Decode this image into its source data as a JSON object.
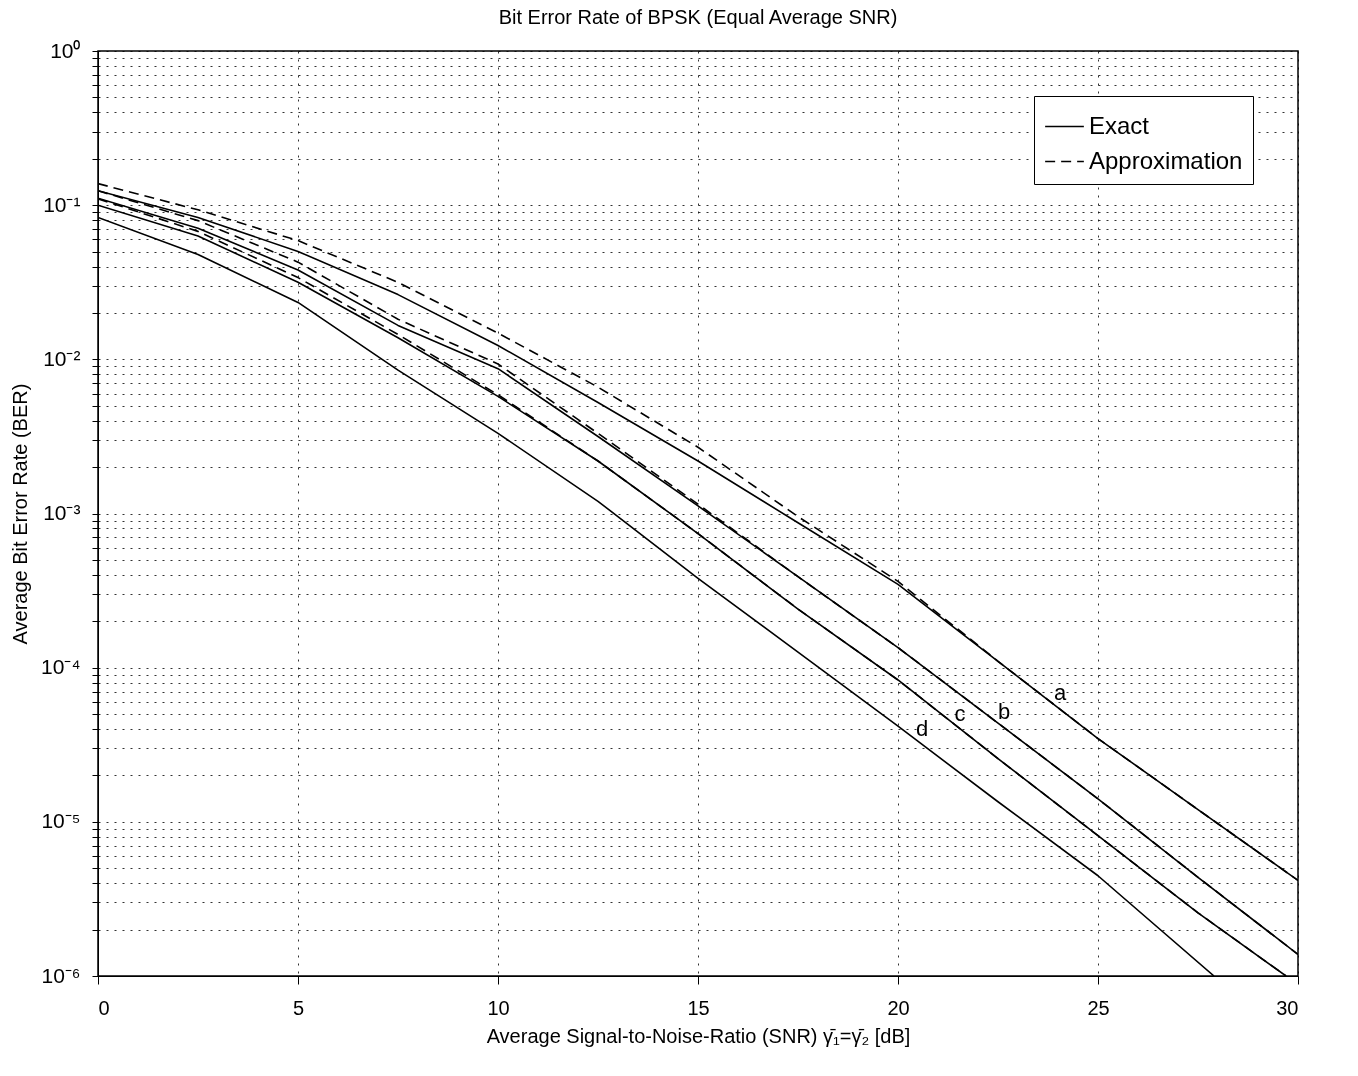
{
  "chart_data": {
    "type": "line",
    "title": "Bit Error Rate of BPSK (Equal Average SNR)",
    "xlabel": "Average Signal-to-Noise-Ratio (SNR) γ̄₁=γ̄₂ [dB]",
    "ylabel": "Average Bit Error Rate (BER)",
    "log": "y",
    "grid": true,
    "legend": "top right",
    "xlim": [
      0,
      30
    ],
    "xticks": [
      0,
      5,
      10,
      15,
      20,
      25,
      30
    ],
    "ylim": [
      1e-06,
      1
    ],
    "yticks": [
      {
        "value": 1e-06,
        "label": "10⁻⁶"
      },
      {
        "value": 2e-06,
        "label": null
      },
      {
        "value": 3e-06,
        "label": null
      },
      {
        "value": 4e-06,
        "label": null
      },
      {
        "value": 5e-06,
        "label": null
      },
      {
        "value": 6e-06,
        "label": null
      },
      {
        "value": 7e-06,
        "label": null
      },
      {
        "value": 8e-06,
        "label": null
      },
      {
        "value": 9e-06,
        "label": null
      },
      {
        "value": 1e-05,
        "label": "10⁻⁵"
      },
      {
        "value": 2e-05,
        "label": null
      },
      {
        "value": 3e-05,
        "label": null
      },
      {
        "value": 4e-05,
        "label": null
      },
      {
        "value": 5e-05,
        "label": null
      },
      {
        "value": 6e-05,
        "label": null
      },
      {
        "value": 7e-05,
        "label": null
      },
      {
        "value": 8e-05,
        "label": null
      },
      {
        "value": 9e-05,
        "label": null
      },
      {
        "value": 0.0001,
        "label": "10⁻⁴"
      },
      {
        "value": 0.0002,
        "label": null
      },
      {
        "value": 0.0003,
        "label": null
      },
      {
        "value": 0.0004,
        "label": null
      },
      {
        "value": 0.0005,
        "label": null
      },
      {
        "value": 0.0006,
        "label": null
      },
      {
        "value": 0.0007,
        "label": null
      },
      {
        "value": 0.0008,
        "label": null
      },
      {
        "value": 0.0009,
        "label": null
      },
      {
        "value": 0.001,
        "label": "10⁻³"
      },
      {
        "value": 0.002,
        "label": null
      },
      {
        "value": 0.003,
        "label": null
      },
      {
        "value": 0.004,
        "label": null
      },
      {
        "value": 0.005,
        "label": null
      },
      {
        "value": 0.006,
        "label": null
      },
      {
        "value": 0.007,
        "label": null
      },
      {
        "value": 0.008,
        "label": null
      },
      {
        "value": 0.009,
        "label": null
      },
      {
        "value": 0.01,
        "label": "10⁻²"
      },
      {
        "value": 0.02,
        "label": null
      },
      {
        "value": 0.03,
        "label": null
      },
      {
        "value": 0.04,
        "label": null
      },
      {
        "value": 0.05,
        "label": null
      },
      {
        "value": 0.06,
        "label": null
      },
      {
        "value": 0.07,
        "label": null
      },
      {
        "value": 0.08,
        "label": null
      },
      {
        "value": 0.09,
        "label": null
      },
      {
        "value": 0.1,
        "label": "10⁻¹"
      },
      {
        "value": 0.2,
        "label": null
      },
      {
        "value": 0.3,
        "label": null
      },
      {
        "value": 0.4,
        "label": null
      },
      {
        "value": 0.5,
        "label": null
      },
      {
        "value": 0.6,
        "label": null
      },
      {
        "value": 0.7,
        "label": null
      },
      {
        "value": 0.8,
        "label": null
      },
      {
        "value": 0.9,
        "label": null
      },
      {
        "value": 1,
        "label": "10⁰"
      }
    ],
    "x": [
      0,
      2.5,
      5,
      7.5,
      10,
      12.5,
      15,
      17.5,
      20,
      22.5,
      25,
      27.5,
      30
    ],
    "series": [
      {
        "name": "Exact",
        "color": "#000000",
        "line_style": "solid",
        "values": [
          0.124,
          0.0832,
          0.0501,
          0.0263,
          0.0123,
          0.00525,
          0.00219,
          0.000871,
          0.000347,
          0.00011,
          3.47e-05,
          1.2e-05,
          4.17e-06
        ]
      },
      {
        "color": "#000000",
        "line_style": "solid",
        "values": [
          0.111,
          0.0708,
          0.038,
          0.0166,
          0.0087,
          0.00316,
          0.00112,
          0.000389,
          0.000135,
          4.37e-05,
          1.41e-05,
          4.37e-06,
          1.38e-06
        ]
      },
      {
        "color": "#000000",
        "line_style": "solid",
        "x": [
          0,
          2.5,
          5,
          7.5,
          10,
          12.5,
          15,
          17.5,
          20,
          22.5,
          25,
          27.5,
          29.7
        ],
        "values": [
          0.1,
          0.0631,
          0.0316,
          0.0138,
          0.00575,
          0.00219,
          0.000741,
          0.00024,
          8.32e-05,
          2.57e-05,
          8.13e-06,
          2.57e-06,
          1e-06
        ]
      },
      {
        "color": "#000000",
        "line_style": "solid",
        "x": [
          0,
          2.5,
          5,
          7.5,
          10,
          12.5,
          15,
          17.5,
          20,
          22.5,
          25,
          27.9
        ],
        "values": [
          0.0832,
          0.0479,
          0.0234,
          0.00851,
          0.00331,
          0.0012,
          0.00038,
          0.000126,
          4.17e-05,
          1.35e-05,
          4.47e-06,
          1e-06
        ]
      },
      {
        "name": "Approximation",
        "color": "#000000",
        "line_style": "dashed",
        "values": [
          0.138,
          0.0933,
          0.0589,
          0.0316,
          0.0148,
          0.0066,
          0.00269,
          0.000955,
          0.000363,
          0.00011,
          3.47e-05,
          1.2e-05,
          4.17e-06
        ]
      },
      {
        "color": "#000000",
        "line_style": "dashed",
        "values": [
          0.124,
          0.0794,
          0.0427,
          0.0182,
          0.00933,
          0.00331,
          0.00115,
          0.000389,
          0.000135,
          4.37e-05,
          1.41e-05,
          4.37e-06,
          1.38e-06
        ]
      },
      {
        "color": "#000000",
        "line_style": "dashed",
        "x": [
          0,
          2.5,
          5,
          7.5,
          10,
          12.5,
          15,
          17.5,
          20,
          22.5,
          25,
          27.5,
          29.7
        ],
        "values": [
          0.11,
          0.0676,
          0.0339,
          0.0145,
          0.00589,
          0.00219,
          0.000741,
          0.00024,
          8.32e-05,
          2.57e-05,
          8.13e-06,
          2.57e-06,
          1e-06
        ]
      }
    ],
    "annotations": [
      {
        "text": "a",
        "x": 24.3,
        "y": 4.8e-05
      },
      {
        "text": "b",
        "x": 22.9,
        "y": 3.6e-05
      },
      {
        "text": "c",
        "x": 21.8,
        "y": 3.5e-05
      },
      {
        "text": "d",
        "x": 20.85,
        "y": 2.8e-05
      }
    ]
  }
}
